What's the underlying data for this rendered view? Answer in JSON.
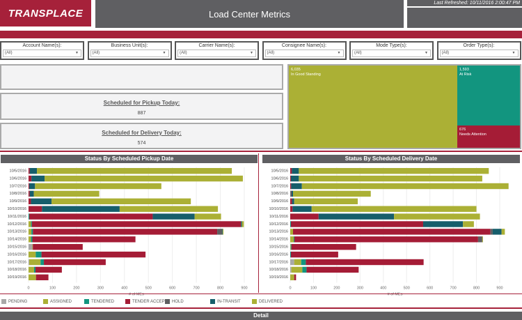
{
  "header": {
    "logo": "TRANSPLACE",
    "title": "Load Center Metrics",
    "last_refreshed": "Last Refreshed: 10/11/2016 2:00:47 PM"
  },
  "filters": [
    {
      "label": "Account Name(s):",
      "value": "(All)"
    },
    {
      "label": "Business Unit(s):",
      "value": "(All)"
    },
    {
      "label": "Carrier Name(s):",
      "value": "(All)"
    },
    {
      "label": "Consignee Name(s):",
      "value": "(All)"
    },
    {
      "label": "Mode Type(s):",
      "value": "(All)"
    },
    {
      "label": "Order Type(s):",
      "value": "(All)"
    }
  ],
  "kpis": {
    "pickup_label": "Scheduled for Pickup Today:",
    "pickup_value": "887",
    "delivery_label": "Scheduled for Delivery Today:",
    "delivery_value": "574"
  },
  "treemap": [
    {
      "value": "6,035",
      "label": "In Good Standing",
      "color": "#abb035"
    },
    {
      "value": "1,593",
      "label": "At Risk",
      "color": "#12957f"
    },
    {
      "value": "676",
      "label": "Needs Attention",
      "color": "#a51c36"
    }
  ],
  "colors": {
    "PENDING": "#a8a8a8",
    "ASSIGNED": "#abb035",
    "TENDERED": "#12957f",
    "TENDER ACCEPT": "#a51c36",
    "HOLD": "#5f5f62",
    "IN-TRANSIT": "#165e6b",
    "DELIVERED": "#abb035"
  },
  "legend": [
    "PENDING",
    "ASSIGNED",
    "TENDERED",
    "TENDER ACCEPT",
    "HOLD",
    "IN-TRANSIT",
    "DELIVERED"
  ],
  "chart_data": [
    {
      "type": "bar",
      "orientation": "horizontal",
      "stacked": true,
      "title": "Status By Scheduled Pickup Date",
      "xlabel": "# of MEs",
      "xlim": [
        0,
        900
      ],
      "xticks": [
        0,
        100,
        200,
        300,
        400,
        500,
        600,
        700,
        800,
        900
      ],
      "categories": [
        "10/5/2016",
        "10/6/2016",
        "10/7/2016",
        "10/8/2016",
        "10/9/2016",
        "10/10/2016",
        "10/11/2016",
        "10/12/2016",
        "10/13/2016",
        "10/14/2016",
        "10/15/2016",
        "10/16/2016",
        "10/17/2016",
        "10/18/2016",
        "10/19/2016"
      ],
      "series": [
        {
          "name": "PENDING",
          "values": [
            0,
            0,
            0,
            0,
            0,
            0,
            0,
            0,
            0,
            0,
            16,
            0,
            3,
            0,
            0
          ]
        },
        {
          "name": "ASSIGNED",
          "values": [
            0,
            0,
            0,
            0,
            0,
            0,
            0,
            10,
            12,
            10,
            2,
            30,
            47,
            23,
            31
          ]
        },
        {
          "name": "TENDERED",
          "values": [
            0,
            0,
            0,
            0,
            0,
            0,
            3,
            4,
            6,
            6,
            0,
            24,
            14,
            6,
            0
          ]
        },
        {
          "name": "TENDER ACCEPT",
          "values": [
            5,
            12,
            3,
            5,
            10,
            56,
            515,
            872,
            769,
            430,
            208,
            434,
            258,
            110,
            52
          ]
        },
        {
          "name": "HOLD",
          "values": [
            0,
            0,
            0,
            0,
            0,
            0,
            0,
            0,
            21,
            0,
            0,
            0,
            0,
            0,
            0
          ]
        },
        {
          "name": "IN-TRANSIT",
          "values": [
            30,
            55,
            24,
            17,
            86,
            324,
            175,
            4,
            2,
            0,
            0,
            0,
            0,
            0,
            0
          ]
        },
        {
          "name": "DELIVERED",
          "values": [
            813,
            827,
            527,
            273,
            581,
            410,
            110,
            8,
            3,
            0,
            0,
            0,
            0,
            0,
            0
          ]
        }
      ]
    },
    {
      "type": "bar",
      "orientation": "horizontal",
      "stacked": true,
      "title": "Status By Scheduled Delivery Date",
      "xlabel": "# of MEs",
      "xlim": [
        0,
        900
      ],
      "xticks": [
        0,
        100,
        200,
        300,
        400,
        500,
        600,
        700,
        800,
        900
      ],
      "categories": [
        "10/5/2016",
        "10/6/2016",
        "10/7/2016",
        "10/8/2016",
        "10/9/2016",
        "10/10/2016",
        "10/11/2016",
        "10/12/2016",
        "10/13/2016",
        "10/14/2016",
        "10/15/2016",
        "10/16/2016",
        "10/17/2016",
        "10/18/2016",
        "10/19/2016"
      ],
      "series": [
        {
          "name": "PENDING",
          "values": [
            0,
            0,
            0,
            0,
            0,
            0,
            0,
            0,
            0,
            0,
            0,
            0,
            17,
            5,
            0
          ]
        },
        {
          "name": "ASSIGNED",
          "values": [
            0,
            0,
            0,
            0,
            0,
            0,
            0,
            0,
            12,
            15,
            2,
            0,
            30,
            47,
            17
          ]
        },
        {
          "name": "TENDERED",
          "values": [
            0,
            0,
            0,
            2,
            0,
            0,
            0,
            3,
            0,
            3,
            3,
            3,
            20,
            18,
            0
          ]
        },
        {
          "name": "TENDER ACCEPT",
          "values": [
            7,
            3,
            4,
            3,
            8,
            10,
            122,
            568,
            848,
            789,
            278,
            203,
            506,
            224,
            8
          ]
        },
        {
          "name": "HOLD",
          "values": [
            0,
            0,
            0,
            0,
            0,
            0,
            0,
            0,
            10,
            18,
            0,
            0,
            0,
            0,
            0
          ]
        },
        {
          "name": "IN-TRANSIT",
          "values": [
            30,
            34,
            46,
            7,
            9,
            82,
            324,
            171,
            38,
            0,
            0,
            0,
            0,
            0,
            0
          ]
        },
        {
          "name": "DELIVERED",
          "values": [
            816,
            788,
            888,
            334,
            273,
            708,
            369,
            47,
            14,
            3,
            0,
            0,
            0,
            0,
            0
          ]
        }
      ]
    }
  ],
  "detail": {
    "title": "Detail"
  }
}
